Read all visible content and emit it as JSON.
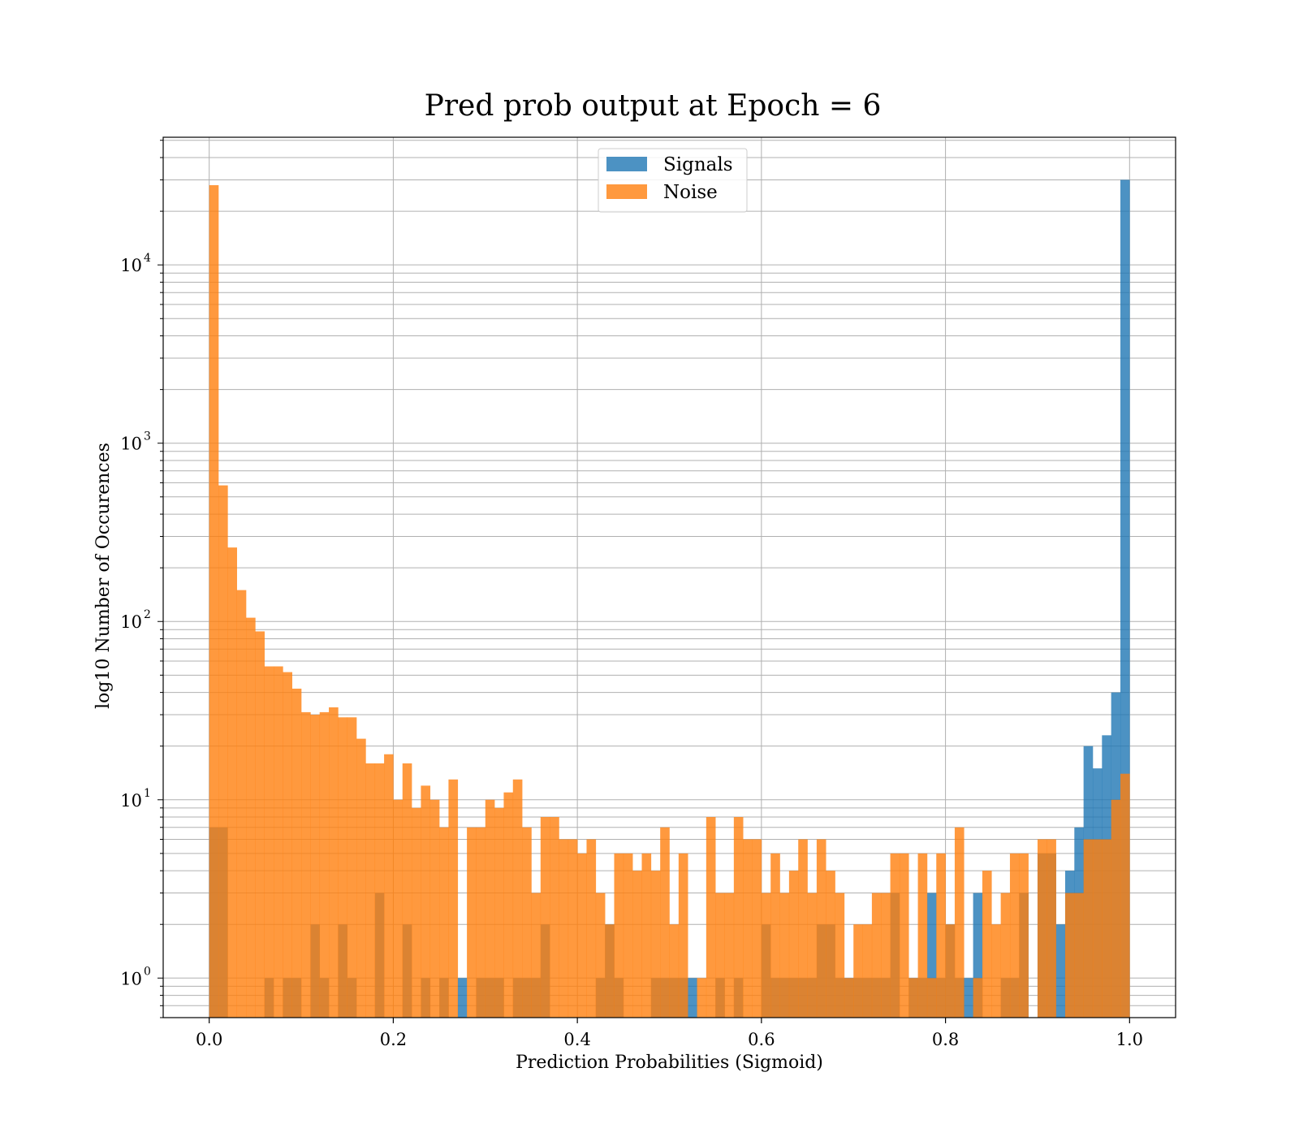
{
  "chart_data": {
    "type": "bar",
    "title": "Pred prob output at Epoch = 6",
    "xlabel": "Prediction Probabilities (Sigmoid)",
    "ylabel": "log10 Number of Occurences",
    "xlim": [
      -0.05,
      1.05
    ],
    "ylim": [
      0.6,
      52000
    ],
    "yscale": "log",
    "grid": true,
    "legend_position": "top-center",
    "bins": 100,
    "bin_range": [
      0,
      1
    ],
    "x_ticks": [
      "0.0",
      "0.2",
      "0.4",
      "0.6",
      "0.8",
      "1.0"
    ],
    "y_ticks": [
      {
        "base": "10",
        "exp": "0",
        "value": 1
      },
      {
        "base": "10",
        "exp": "1",
        "value": 10
      },
      {
        "base": "10",
        "exp": "2",
        "value": 100
      },
      {
        "base": "10",
        "exp": "3",
        "value": 1000
      },
      {
        "base": "10",
        "exp": "4",
        "value": 10000
      }
    ],
    "series": [
      {
        "name": "Signals",
        "color": "#1f77b4",
        "values": [
          7,
          7,
          0,
          0,
          0,
          0,
          1,
          0,
          1,
          1,
          0,
          2,
          1,
          0,
          2,
          1,
          0,
          0,
          3,
          0,
          0,
          2,
          0,
          1,
          0,
          1,
          0,
          1,
          0,
          1,
          1,
          1,
          0,
          1,
          1,
          1,
          2,
          0,
          0,
          0,
          0,
          0,
          1,
          2,
          1,
          0,
          0,
          0,
          1,
          1,
          1,
          1,
          1,
          0,
          0,
          1,
          0,
          1,
          0,
          0,
          2,
          1,
          1,
          1,
          1,
          1,
          2,
          2,
          1,
          1,
          1,
          1,
          1,
          1,
          3,
          0,
          1,
          1,
          3,
          1,
          2,
          1,
          1,
          3,
          0,
          0,
          1,
          1,
          3,
          0,
          5,
          5,
          2,
          4,
          7,
          20,
          15,
          23,
          40,
          30000
        ]
      },
      {
        "name": "Noise",
        "color": "#ff7f0e",
        "values": [
          28000,
          580,
          260,
          150,
          105,
          88,
          56,
          56,
          52,
          42,
          31,
          30,
          31,
          33,
          29,
          29,
          22,
          16,
          16,
          18,
          10,
          16,
          9,
          12,
          10,
          7,
          13,
          0,
          7,
          7,
          10,
          9,
          11,
          13,
          7,
          3,
          8,
          8,
          6,
          6,
          5,
          6,
          3,
          2,
          5,
          5,
          4,
          5,
          4,
          7,
          2,
          5,
          0,
          1,
          8,
          3,
          3,
          8,
          6,
          6,
          3,
          5,
          3,
          4,
          6,
          3,
          6,
          4,
          3,
          1,
          2,
          2,
          3,
          3,
          5,
          5,
          1,
          5,
          1,
          5,
          2,
          7,
          0,
          1,
          4,
          2,
          3,
          5,
          5,
          0,
          6,
          6,
          0,
          3,
          3,
          6,
          6,
          6,
          10,
          14
        ]
      }
    ]
  }
}
